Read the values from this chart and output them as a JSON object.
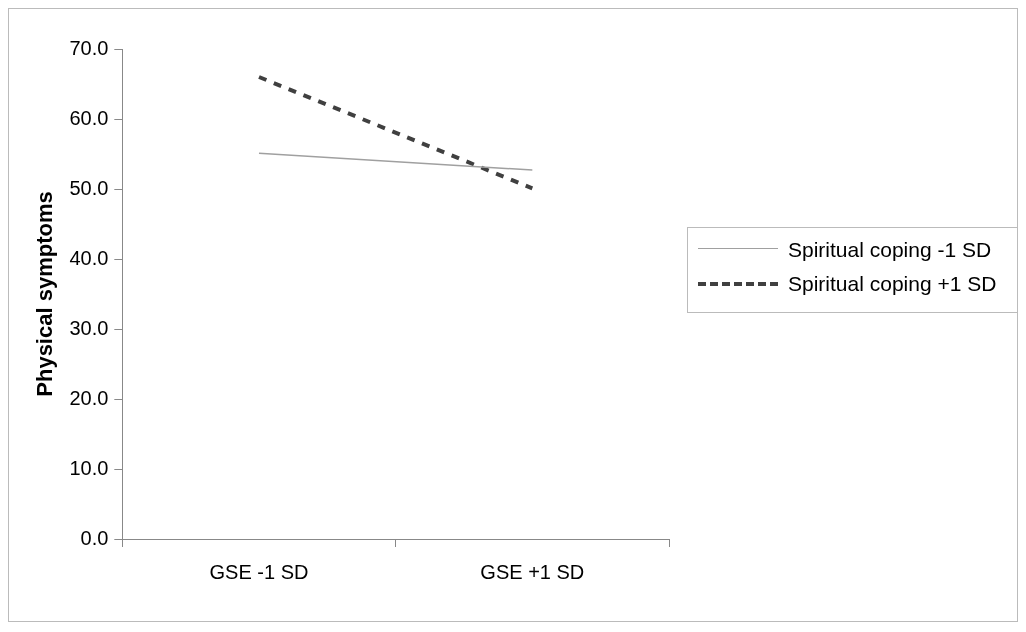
{
  "chart_data": {
    "type": "line",
    "ylabel": "Physical symptoms",
    "categories": [
      "GSE -1 SD",
      "GSE +1 SD"
    ],
    "series": [
      {
        "name": "Spiritual coping -1 SD",
        "color": "#a0a0a0",
        "line_style": "solid",
        "values": [
          55.1,
          52.7
        ]
      },
      {
        "name": "Spiritual coping +1 SD",
        "color": "#404040",
        "line_style": "dashed",
        "values": [
          66.0,
          50.1
        ]
      }
    ],
    "ylim": [
      0,
      70
    ],
    "yticks": [
      {
        "value": 0,
        "label": "0.0"
      },
      {
        "value": 10,
        "label": "10.0"
      },
      {
        "value": 20,
        "label": "20.0"
      },
      {
        "value": 30,
        "label": "30.0"
      },
      {
        "value": 40,
        "label": "40.0"
      },
      {
        "value": 50,
        "label": "50.0"
      },
      {
        "value": 60,
        "label": "60.0"
      },
      {
        "value": 70,
        "label": "70.0"
      }
    ],
    "grid": false,
    "legend": "right",
    "marker": "none"
  }
}
